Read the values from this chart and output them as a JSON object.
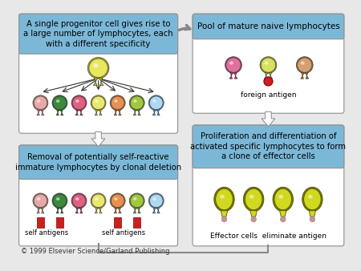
{
  "bg_color": "#e8e8e8",
  "panel_bg": "#7BB8D8",
  "white_bg": "#FFFFFF",
  "copyright": "© 1999 Elsevier Science/Garland Publishing",
  "box1_title": "A single progenitor cell gives rise to\na large number of lymphocytes, each\nwith a different specificity",
  "box2_title": "Pool of mature naive lymphocytes",
  "box3_title": "Removal of potentially self-reactive\nimmature lymphocytes by clonal deletion",
  "box4_title": "Proliferation and differentiation of\nactivated specific lymphocytes to form\na clone of effector cells",
  "label_foreign": "foreign antigen",
  "label_self1": "self antigens",
  "label_self2": "self antigens",
  "label_effector": "Effector cells  eliminate antigen",
  "lc": [
    "#E8A8A8",
    "#3A8A3A",
    "#E06080",
    "#E8E870",
    "#E89050",
    "#A0C840",
    "#B0D8F0"
  ],
  "rc": [
    "#CC8070",
    "#1A6A1A",
    "#CC2060",
    "#D4C000",
    "#CC6010",
    "#70A010",
    "#5090C0"
  ],
  "b2_lc": [
    "#E070A0",
    "#D8E060",
    "#D4A070"
  ],
  "b2_rc": [
    "#C03060",
    "#A8B000",
    "#B06020"
  ],
  "progenitor_color": "#E8E860",
  "progenitor_ring": "#B8B800",
  "effector_body": "#D0D820",
  "effector_ring": "#808800",
  "effector_antigen": "#D09090",
  "antigen_red": "#CC2020",
  "self_antigen_red": "#CC2020"
}
